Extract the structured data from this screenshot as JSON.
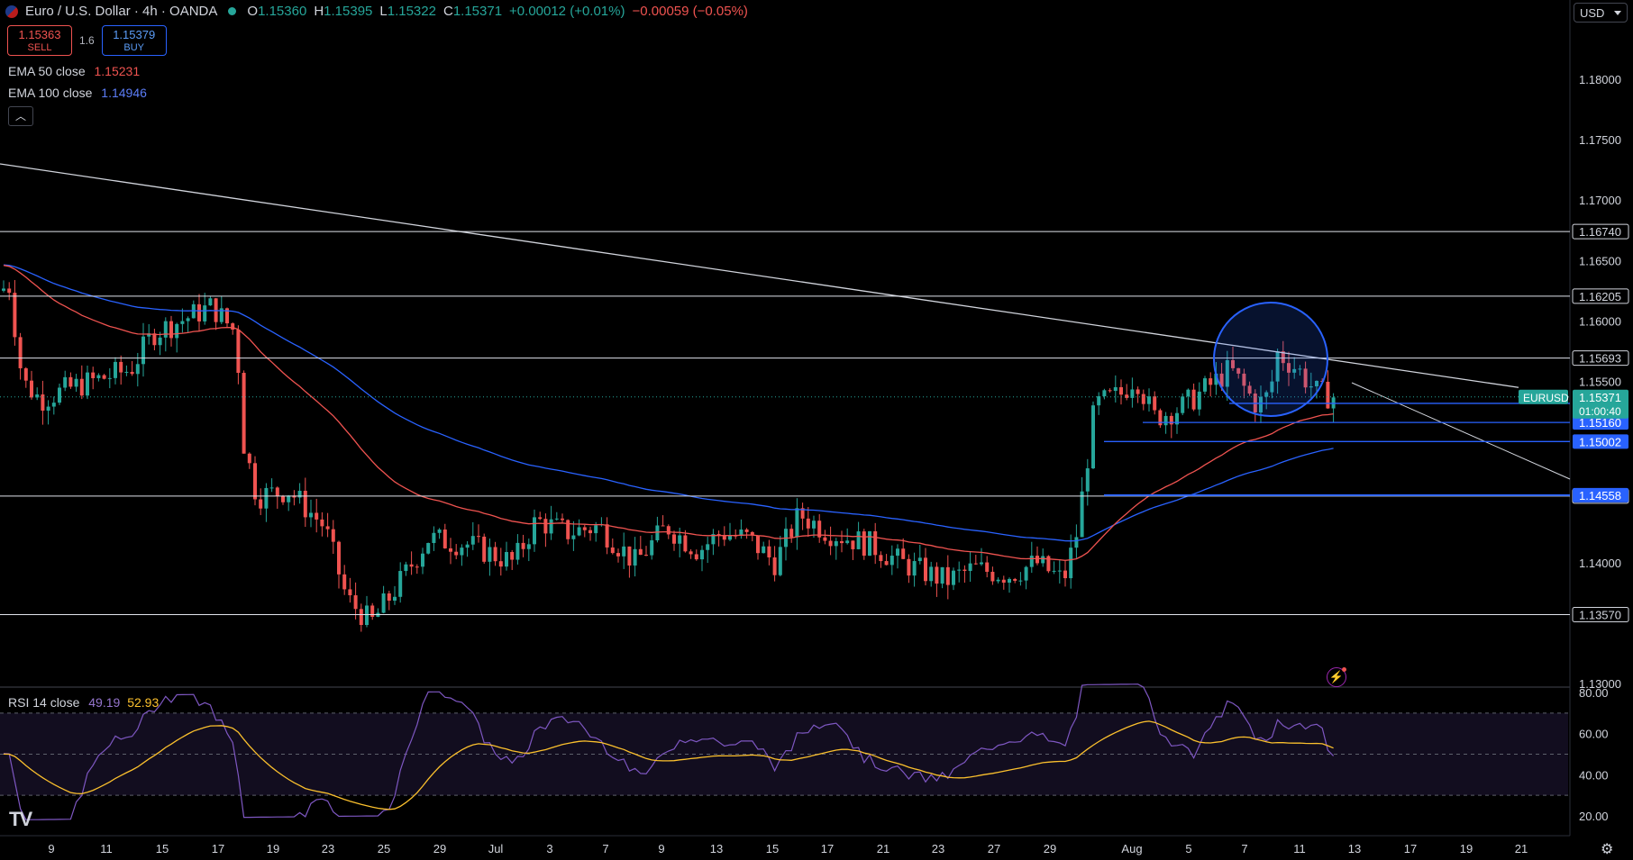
{
  "header": {
    "symbol": "Euro / U.S. Dollar · 4h · OANDA",
    "o_label": "O",
    "o": "1.15360",
    "h_label": "H",
    "h": "1.15395",
    "l_label": "L",
    "l": "1.15322",
    "c_label": "C",
    "c": "1.15371",
    "change": "+0.00012 (+0.01%)",
    "change2": "−0.00059 (−0.05%)"
  },
  "trade": {
    "sell_price": "1.15363",
    "sell_label": "SELL",
    "spread": "1.6",
    "buy_price": "1.15379",
    "buy_label": "BUY"
  },
  "indicators": {
    "ema50_label": "EMA 50 close",
    "ema50_value": "1.15231",
    "ema50_color": "#ef5350",
    "ema100_label": "EMA 100 close",
    "ema100_value": "1.14946",
    "ema100_color": "#2962ff"
  },
  "rsi": {
    "label": "RSI 14 close",
    "value": "49.19",
    "ma_value": "52.93",
    "color": "#7e57c2",
    "ma_color": "#fbc02d"
  },
  "currency": "USD",
  "icons": {
    "collapse": "chevron-up-icon",
    "settings": "gear-icon",
    "logo": "tradingview-logo",
    "alert": "lightning-icon"
  },
  "colors": {
    "up": "#26a69a",
    "down": "#ef5350",
    "level": "#2962ff",
    "background": "#000000",
    "text": "#d1d4dc"
  },
  "chart_data": [
    {
      "type": "candlestick",
      "symbol": "EURUSD",
      "timeframe": "4h",
      "x_ticks": [
        "9",
        "11",
        "15",
        "17",
        "19",
        "23",
        "25",
        "29",
        "Jul",
        "3",
        "7",
        "9",
        "13",
        "15",
        "17",
        "21",
        "23",
        "27",
        "29",
        "Aug",
        "5",
        "7",
        "11",
        "13",
        "17",
        "19",
        "21"
      ],
      "y_ticks": [
        "1.18000",
        "1.17500",
        "1.17000",
        "1.16500",
        "1.16000",
        "1.15500",
        "1.14000",
        "1.13000"
      ],
      "ylim": [
        1.13,
        1.185
      ],
      "last_price": {
        "label": "EURUSD",
        "value": "1.15371",
        "countdown": "01:00:40"
      },
      "horizontal_levels": [
        {
          "value": "1.16740",
          "color": "#ffffff"
        },
        {
          "value": "1.16205",
          "color": "#ffffff"
        },
        {
          "value": "1.15693",
          "color": "#ffffff"
        },
        {
          "value": "1.14551",
          "color": "#ffffff"
        },
        {
          "value": "1.13570",
          "color": "#ffffff"
        }
      ],
      "blue_levels": [
        {
          "value": "1.15318"
        },
        {
          "value": "1.15160"
        },
        {
          "value": "1.15002"
        },
        {
          "value": "1.14558"
        }
      ],
      "trendline_price_start": 1.1735,
      "trendline_price_end": 1.1545,
      "ema50_end": 1.15231,
      "ema100_end": 1.14946
    },
    {
      "type": "line",
      "name": "RSI 14 close",
      "y_ticks": [
        "80.00",
        "60.00",
        "40.00",
        "20.00"
      ],
      "ylim": [
        15,
        85
      ],
      "bands": [
        70,
        50,
        30
      ],
      "rsi_last": 49.19,
      "ma_last": 52.93
    }
  ]
}
